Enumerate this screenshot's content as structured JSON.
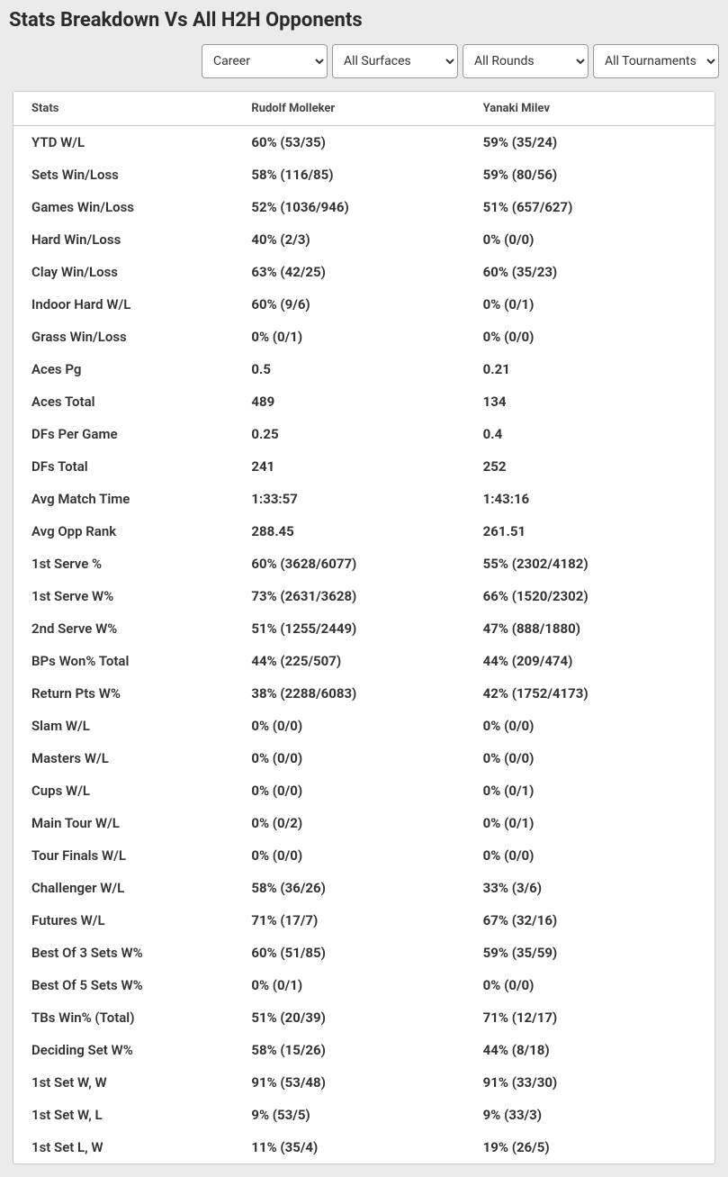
{
  "title": "Stats Breakdown Vs All H2H Opponents",
  "filters": {
    "career": {
      "selected": "Career",
      "options": [
        "Career"
      ]
    },
    "surfaces": {
      "selected": "All Surfaces",
      "options": [
        "All Surfaces"
      ]
    },
    "rounds": {
      "selected": "All Rounds",
      "options": [
        "All Rounds"
      ]
    },
    "tournaments": {
      "selected": "All Tournaments",
      "options": [
        "All Tournaments"
      ]
    }
  },
  "table": {
    "columns": [
      "Stats",
      "Rudolf Molleker",
      "Yanaki Milev"
    ],
    "rows": [
      [
        "YTD W/L",
        "60% (53/35)",
        "59% (35/24)"
      ],
      [
        "Sets Win/Loss",
        "58% (116/85)",
        "59% (80/56)"
      ],
      [
        "Games Win/Loss",
        "52% (1036/946)",
        "51% (657/627)"
      ],
      [
        "Hard Win/Loss",
        "40% (2/3)",
        "0% (0/0)"
      ],
      [
        "Clay Win/Loss",
        "63% (42/25)",
        "60% (35/23)"
      ],
      [
        "Indoor Hard W/L",
        "60% (9/6)",
        "0% (0/1)"
      ],
      [
        "Grass Win/Loss",
        "0% (0/1)",
        "0% (0/0)"
      ],
      [
        "Aces Pg",
        "0.5",
        "0.21"
      ],
      [
        "Aces Total",
        "489",
        "134"
      ],
      [
        "DFs Per Game",
        "0.25",
        "0.4"
      ],
      [
        "DFs Total",
        "241",
        "252"
      ],
      [
        "Avg Match Time",
        "1:33:57",
        "1:43:16"
      ],
      [
        "Avg Opp Rank",
        "288.45",
        "261.51"
      ],
      [
        "1st Serve %",
        "60% (3628/6077)",
        "55% (2302/4182)"
      ],
      [
        "1st Serve W%",
        "73% (2631/3628)",
        "66% (1520/2302)"
      ],
      [
        "2nd Serve W%",
        "51% (1255/2449)",
        "47% (888/1880)"
      ],
      [
        "BPs Won% Total",
        "44% (225/507)",
        "44% (209/474)"
      ],
      [
        "Return Pts W%",
        "38% (2288/6083)",
        "42% (1752/4173)"
      ],
      [
        "Slam W/L",
        "0% (0/0)",
        "0% (0/0)"
      ],
      [
        "Masters W/L",
        "0% (0/0)",
        "0% (0/0)"
      ],
      [
        "Cups W/L",
        "0% (0/0)",
        "0% (0/1)"
      ],
      [
        "Main Tour W/L",
        "0% (0/2)",
        "0% (0/1)"
      ],
      [
        "Tour Finals W/L",
        "0% (0/0)",
        "0% (0/0)"
      ],
      [
        "Challenger W/L",
        "58% (36/26)",
        "33% (3/6)"
      ],
      [
        "Futures W/L",
        "71% (17/7)",
        "67% (32/16)"
      ],
      [
        "Best Of 3 Sets W%",
        "60% (51/85)",
        "59% (35/59)"
      ],
      [
        "Best Of 5 Sets W%",
        "0% (0/1)",
        "0% (0/0)"
      ],
      [
        "TBs Win% (Total)",
        "51% (20/39)",
        "71% (12/17)"
      ],
      [
        "Deciding Set W%",
        "58% (15/26)",
        "44% (8/18)"
      ],
      [
        "1st Set W, W",
        "91% (53/48)",
        "91% (33/30)"
      ],
      [
        "1st Set W, L",
        "9% (53/5)",
        "9% (33/3)"
      ],
      [
        "1st Set L, W",
        "11% (35/4)",
        "19% (26/5)"
      ]
    ]
  }
}
